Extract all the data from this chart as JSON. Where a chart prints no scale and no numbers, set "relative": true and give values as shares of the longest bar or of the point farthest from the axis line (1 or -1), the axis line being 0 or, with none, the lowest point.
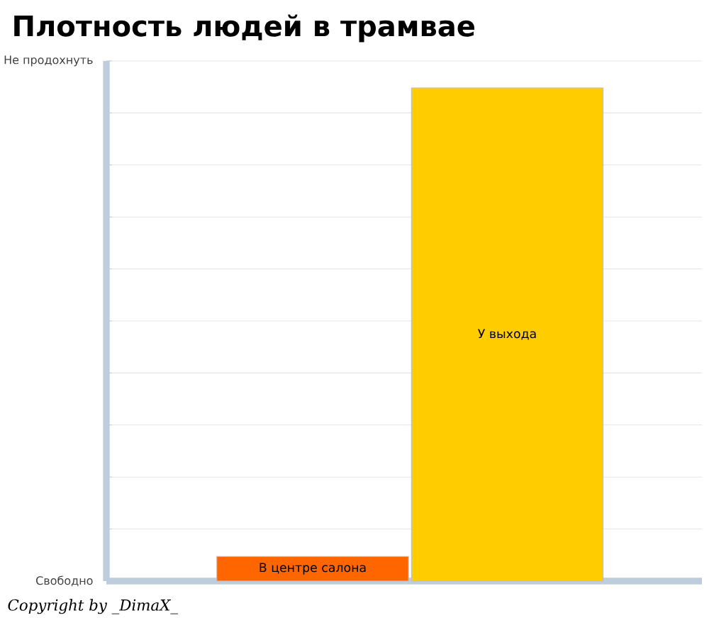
{
  "chart_data": {
    "type": "bar",
    "title": "Плотность людей в трамвае",
    "categories": [
      "В центре салона",
      "У выхода"
    ],
    "values": [
      0.05,
      1
    ],
    "colors": [
      "#ff6600",
      "#ffcc00"
    ],
    "relative": true,
    "grid": "y",
    "annotations": [
      "Не продохнуть",
      "Свободно",
      "Copyright by _DimaX_"
    ]
  }
}
